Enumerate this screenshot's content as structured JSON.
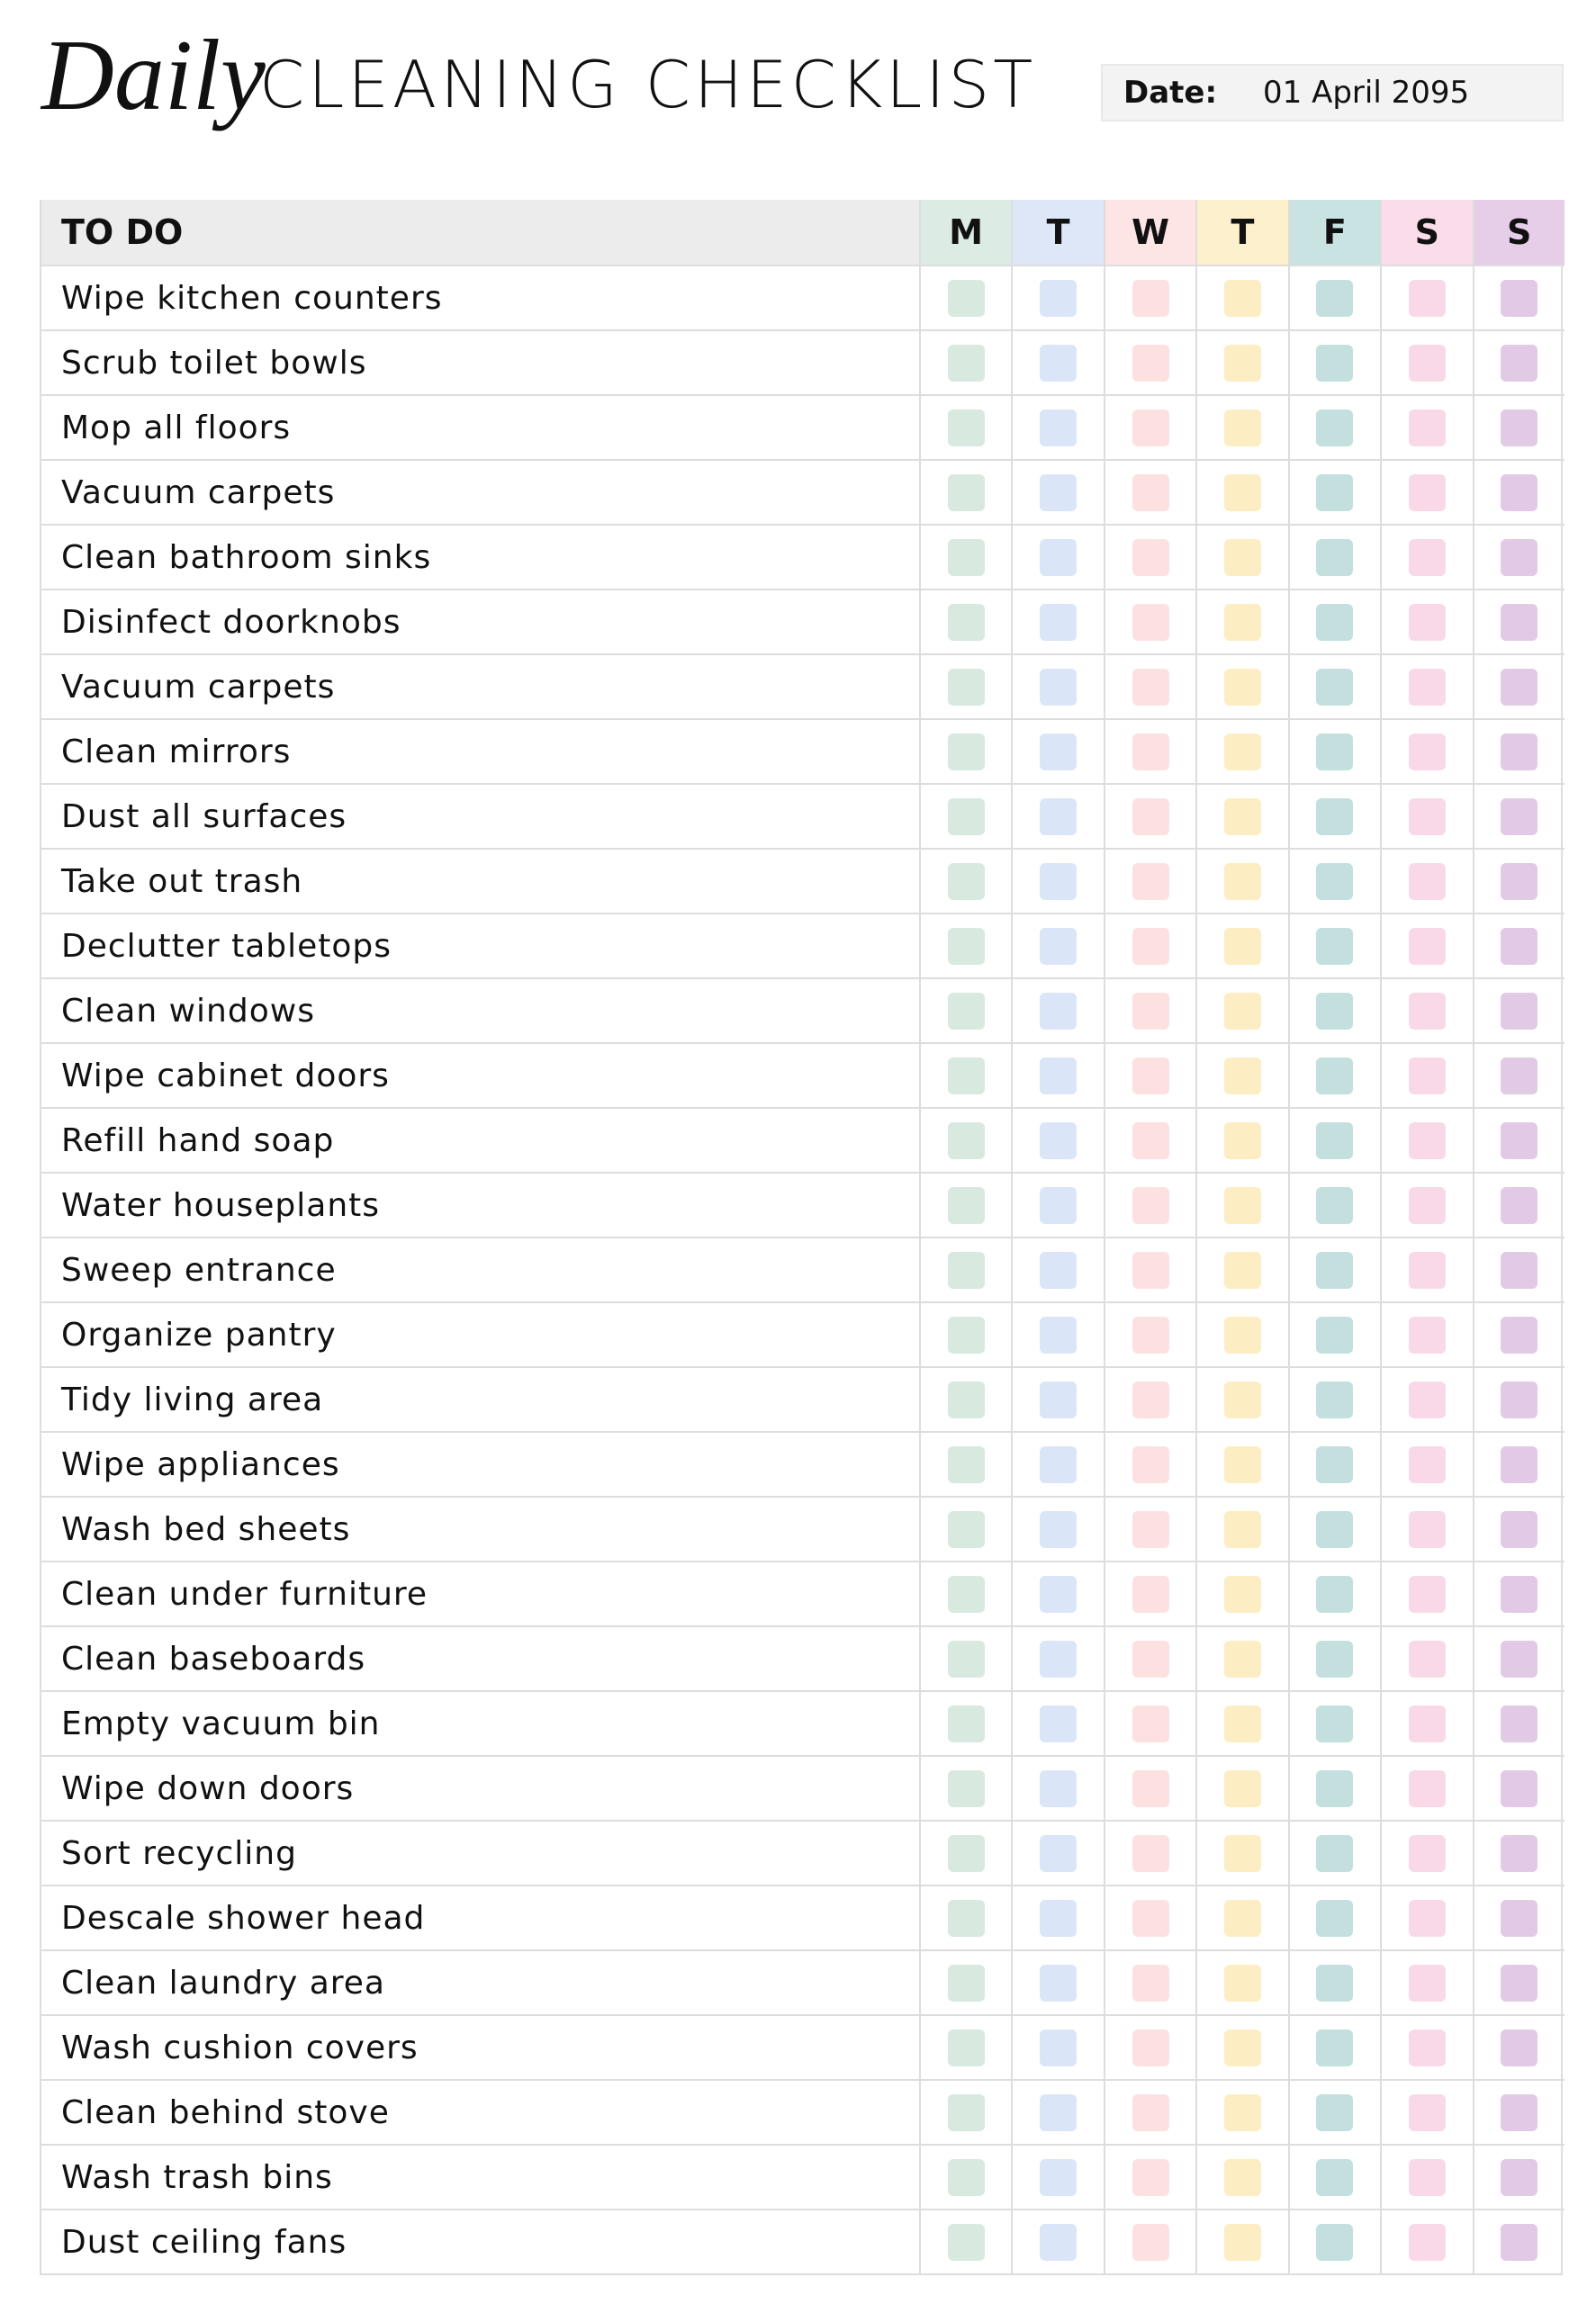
{
  "header": {
    "title_script": "Daily",
    "title": "CLEANING CHECKLIST",
    "date_label": "Date:",
    "date": "01 April 2095"
  },
  "table": {
    "columns": [
      "TO DO",
      "M",
      "T",
      "W",
      "T",
      "F",
      "S",
      "S"
    ],
    "rows": [
      "Wipe kitchen counters",
      "Scrub toilet bowls",
      "Mop all floors",
      "Vacuum carpets",
      "Clean bathroom sinks",
      "Disinfect doorknobs",
      "Vacuum carpets",
      "Clean mirrors",
      "Dust all surfaces",
      "Take out trash",
      "Declutter tabletops",
      "Clean windows",
      "Wipe cabinet doors",
      "Refill hand soap",
      "Water houseplants",
      "Sweep entrance",
      "Organize pantry",
      "Tidy living area",
      "Wipe appliances",
      "Wash bed sheets",
      "Clean under furniture",
      "Clean baseboards",
      "Empty vacuum bin",
      "Wipe down doors",
      "Sort recycling",
      "Descale shower head",
      "Clean laundry area",
      "Wash cushion covers",
      "Clean behind stove",
      "Wash trash bins",
      "Dust ceiling fans"
    ]
  }
}
